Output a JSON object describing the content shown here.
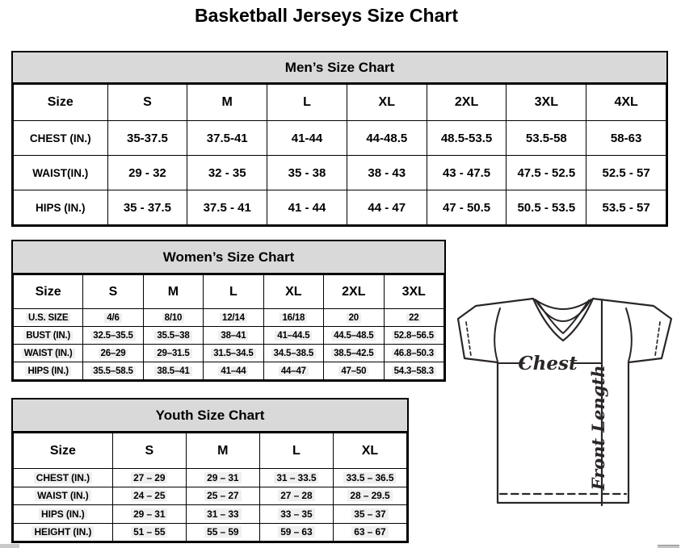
{
  "title": "Basketball Jerseys Size Chart",
  "mens": {
    "title": "Men’s Size Chart",
    "header": [
      "Size",
      "S",
      "M",
      "L",
      "XL",
      "2XL",
      "3XL",
      "4XL"
    ],
    "rows": [
      {
        "label": "CHEST (IN.)",
        "values": [
          "35-37.5",
          "37.5-41",
          "41-44",
          "44-48.5",
          "48.5-53.5",
          "53.5-58",
          "58-63"
        ]
      },
      {
        "label": "WAIST(IN.)",
        "values": [
          "29 - 32",
          "32 - 35",
          "35 - 38",
          "38 - 43",
          "43 - 47.5",
          "47.5 - 52.5",
          "52.5 - 57"
        ]
      },
      {
        "label": "HIPS (IN.)",
        "values": [
          "35 - 37.5",
          "37.5 - 41",
          "41 - 44",
          "44 - 47",
          "47 - 50.5",
          "50.5 - 53.5",
          "53.5 - 57"
        ]
      }
    ]
  },
  "womens": {
    "title": "Women’s Size Chart",
    "header": [
      "Size",
      "S",
      "M",
      "L",
      "XL",
      "2XL",
      "3XL"
    ],
    "rows": [
      {
        "label": "U.S. SIZE",
        "values": [
          "4/6",
          "8/10",
          "12/14",
          "16/18",
          "20",
          "22"
        ]
      },
      {
        "label": "BUST (IN.)",
        "values": [
          "32.5–35.5",
          "35.5–38",
          "38–41",
          "41–44.5",
          "44.5–48.5",
          "52.8–56.5"
        ]
      },
      {
        "label": "WAIST (IN.)",
        "values": [
          "26–29",
          "29–31.5",
          "31.5–34.5",
          "34.5–38.5",
          "38.5–42.5",
          "46.8–50.3"
        ]
      },
      {
        "label": "HIPS (IN.)",
        "values": [
          "35.5–58.5",
          "38.5–41",
          "41–44",
          "44–47",
          "47–50",
          "54.3–58.3"
        ]
      }
    ]
  },
  "youth": {
    "title": "Youth Size Chart",
    "header": [
      "Size",
      "S",
      "M",
      "L",
      "XL"
    ],
    "rows": [
      {
        "label": "CHEST (IN.)",
        "values": [
          "27 – 29",
          "29 – 31",
          "31 – 33.5",
          "33.5 – 36.5"
        ]
      },
      {
        "label": "WAIST (IN.)",
        "values": [
          "24 – 25",
          "25 – 27",
          "27 – 28",
          "28 – 29.5"
        ]
      },
      {
        "label": "HIPS (IN.)",
        "values": [
          "29 – 31",
          "31 – 33",
          "33 – 35",
          "35 – 37"
        ]
      },
      {
        "label": "HEIGHT (IN.)",
        "values": [
          "51 – 55",
          "55 – 59",
          "59 – 63",
          "63 – 67"
        ]
      }
    ]
  },
  "diagram": {
    "chest_label": "Chest",
    "front_length_label": "Front Length"
  },
  "colors": {
    "header_bg": "#d9d9d9",
    "table_border": "#000000",
    "diagram_line": "#2b2626",
    "cell_highlight": "#efefef"
  }
}
